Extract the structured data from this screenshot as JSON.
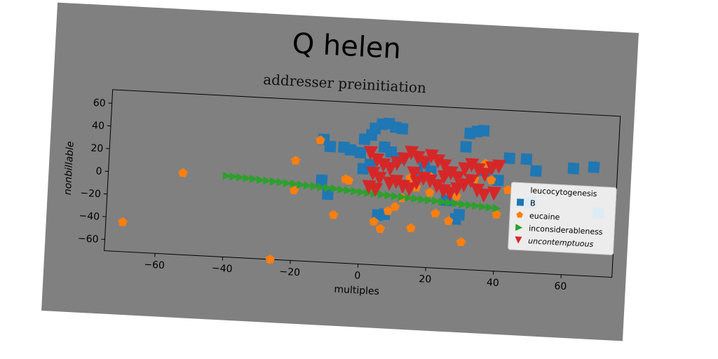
{
  "chart_data": {
    "type": "scatter",
    "title": "Q helen",
    "subtitle": "addresser preinitiation",
    "xlabel": "multiples",
    "ylabel": "nonbillable",
    "xlim": [
      -75,
      75
    ],
    "ylim": [
      -70,
      72
    ],
    "xticks": [
      -60,
      -40,
      -20,
      0,
      20,
      40,
      60
    ],
    "yticks": [
      -60,
      -40,
      -20,
      0,
      20,
      40,
      60
    ],
    "grid": false,
    "legend": {
      "title": "leucocytogenesis",
      "position": "right"
    },
    "series": [
      {
        "name": "B",
        "marker": "square",
        "color": "#1f77b4",
        "points": [
          [
            -12,
            38
          ],
          [
            -10,
            32
          ],
          [
            -6,
            32
          ],
          [
            -4,
            30
          ],
          [
            -1,
            28
          ],
          [
            0,
            40
          ],
          [
            2,
            44
          ],
          [
            3,
            50
          ],
          [
            5,
            54
          ],
          [
            7,
            55
          ],
          [
            9,
            52
          ],
          [
            11,
            51
          ],
          [
            6,
            34
          ],
          [
            8,
            30
          ],
          [
            10,
            25
          ],
          [
            0,
            14
          ],
          [
            2,
            18
          ],
          [
            -12,
            2
          ],
          [
            -10,
            -10
          ],
          [
            5,
            -26
          ],
          [
            7,
            -25
          ],
          [
            16,
            12
          ],
          [
            18,
            22
          ],
          [
            20,
            15
          ],
          [
            28,
            -26
          ],
          [
            29,
            -22
          ],
          [
            30,
            38
          ],
          [
            31,
            50
          ],
          [
            33,
            52
          ],
          [
            35,
            53
          ],
          [
            40,
            10
          ],
          [
            43,
            30
          ],
          [
            48,
            30
          ],
          [
            51,
            20
          ],
          [
            62,
            24
          ],
          [
            68,
            26
          ],
          [
            50,
            -8
          ],
          [
            70,
            -14
          ],
          [
            36,
            18
          ],
          [
            25,
            -10
          ]
        ]
      },
      {
        "name": "eucaine",
        "marker": "circle",
        "color": "#ff7f0e",
        "points": [
          [
            -70,
            -44
          ],
          [
            -53,
            2
          ],
          [
            -26,
            -70
          ],
          [
            -20,
            18
          ],
          [
            -20,
            -8
          ],
          [
            -13,
            37
          ],
          [
            -8,
            -28
          ],
          [
            -5,
            4
          ],
          [
            -4,
            3
          ],
          [
            4,
            -32
          ],
          [
            6,
            -38
          ],
          [
            8,
            -22
          ],
          [
            10,
            -18
          ],
          [
            12,
            -10
          ],
          [
            14,
            8
          ],
          [
            15,
            -36
          ],
          [
            16,
            0
          ],
          [
            20,
            -4
          ],
          [
            22,
            -22
          ],
          [
            26,
            -28
          ],
          [
            28,
            -6
          ],
          [
            30,
            -46
          ],
          [
            33,
            10
          ],
          [
            36,
            24
          ],
          [
            38,
            10
          ],
          [
            40,
            -20
          ],
          [
            43,
            2
          ],
          [
            20,
            10
          ]
        ]
      },
      {
        "name": "inconsiderableness",
        "marker": "triangle-right",
        "color": "#2ca02c",
        "points": [
          [
            -40,
            1.5
          ],
          [
            -38,
            1.1
          ],
          [
            -36,
            0.7
          ],
          [
            -34,
            0.3
          ],
          [
            -32,
            -0.1
          ],
          [
            -30,
            -0.6
          ],
          [
            -28,
            -1
          ],
          [
            -26,
            -1.4
          ],
          [
            -24,
            -1.8
          ],
          [
            -22,
            -2.2
          ],
          [
            -20,
            -2.6
          ],
          [
            -18,
            -3
          ],
          [
            -16,
            -3.4
          ],
          [
            -14,
            -3.8
          ],
          [
            -12,
            -4.2
          ],
          [
            -10,
            -4.6
          ],
          [
            -8,
            -5
          ],
          [
            -6,
            -5.4
          ],
          [
            -4,
            -5.8
          ],
          [
            -2,
            -6.2
          ],
          [
            0,
            -6.7
          ],
          [
            2,
            -7.1
          ],
          [
            4,
            -7.5
          ],
          [
            6,
            -7.9
          ],
          [
            8,
            -8.3
          ],
          [
            10,
            -8.7
          ],
          [
            12,
            -9.1
          ],
          [
            14,
            -9.5
          ],
          [
            16,
            -9.9
          ],
          [
            18,
            -10.3
          ],
          [
            20,
            -10.7
          ],
          [
            22,
            -11.1
          ],
          [
            24,
            -11.5
          ],
          [
            26,
            -11.9
          ],
          [
            28,
            -12.3
          ],
          [
            30,
            -12.7
          ],
          [
            32,
            -13.1
          ],
          [
            34,
            -13.5
          ],
          [
            36,
            -13.9
          ],
          [
            38,
            -14.3
          ],
          [
            40,
            -14.7
          ]
        ]
      },
      {
        "name": "uncontemptuous",
        "marker": "triangle-down",
        "color": "#d62728",
        "points": [
          [
            2,
            28
          ],
          [
            4,
            22
          ],
          [
            6,
            18
          ],
          [
            3,
            10
          ],
          [
            5,
            6
          ],
          [
            8,
            15
          ],
          [
            10,
            20
          ],
          [
            12,
            24
          ],
          [
            14,
            30
          ],
          [
            16,
            26
          ],
          [
            18,
            22
          ],
          [
            20,
            28
          ],
          [
            22,
            24
          ],
          [
            24,
            20
          ],
          [
            26,
            14
          ],
          [
            28,
            10
          ],
          [
            30,
            18
          ],
          [
            32,
            22
          ],
          [
            34,
            18
          ],
          [
            36,
            14
          ],
          [
            38,
            20
          ],
          [
            40,
            22
          ],
          [
            2,
            -2
          ],
          [
            4,
            -4
          ],
          [
            8,
            2
          ],
          [
            10,
            4
          ],
          [
            12,
            0
          ],
          [
            14,
            -2
          ],
          [
            16,
            4
          ],
          [
            18,
            8
          ],
          [
            20,
            6
          ],
          [
            22,
            2
          ],
          [
            24,
            -2
          ],
          [
            26,
            -4
          ],
          [
            28,
            0
          ],
          [
            30,
            4
          ],
          [
            34,
            0
          ],
          [
            36,
            -4
          ],
          [
            39,
            -2
          ],
          [
            15,
            12
          ],
          [
            24,
            10
          ],
          [
            32,
            8
          ]
        ]
      }
    ]
  }
}
